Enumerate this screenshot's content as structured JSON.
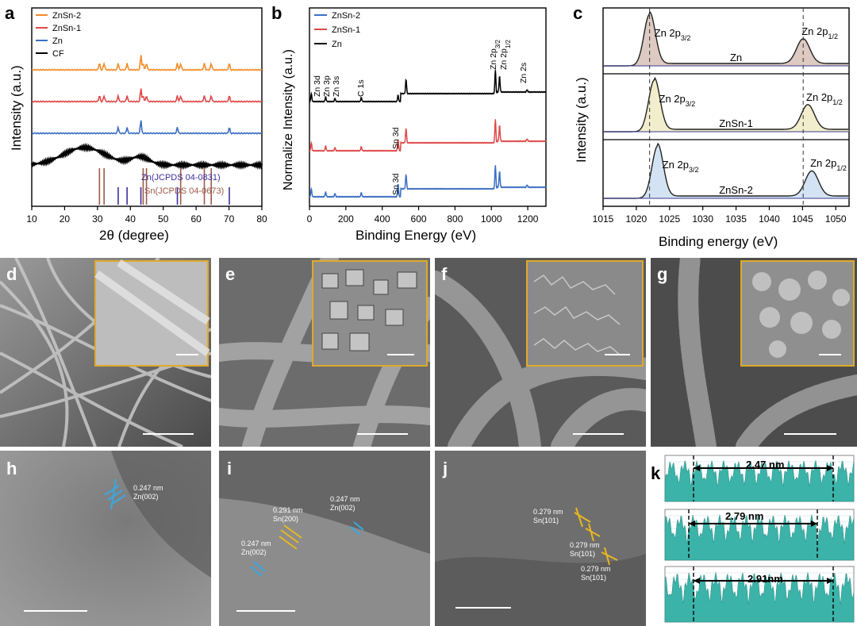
{
  "panel_letters": {
    "a": "a",
    "b": "b",
    "c": "c",
    "d": "d",
    "e": "e",
    "f": "f",
    "g": "g",
    "h": "h",
    "i": "i",
    "j": "j",
    "k": "k"
  },
  "colors": {
    "znsn2": "#f28c28",
    "znsn1": "#e04848",
    "zn": "#3a6fc4",
    "cf": "#000000",
    "ref_zn": "#3b2f9e",
    "ref_sn": "#9b5a4a",
    "inset_border": "#e0a92a",
    "lattice_blue": "#3aa8e0",
    "lattice_yellow": "#e8b820",
    "profile": "#3bb3a8"
  },
  "chart_data": [
    {
      "type": "line",
      "panel": "a",
      "xlabel": "2θ (degree)",
      "ylabel": "Intensity (a.u.)",
      "xlim": [
        10,
        80
      ],
      "xticks": [
        10,
        20,
        30,
        40,
        50,
        60,
        70,
        80
      ],
      "legend": [
        "ZnSn-2",
        "ZnSn-1",
        "Zn",
        "CF"
      ],
      "legend_position": "top-left",
      "ref_labels": [
        "Zn(JCPDS 04-0831)",
        "Sn(JCPDS 04-0673)"
      ],
      "ref_zn": [
        36.3,
        39.0,
        43.2,
        54.3,
        70.1
      ],
      "ref_sn": [
        30.6,
        32.0,
        43.9,
        44.9,
        55.3,
        62.5,
        64.6
      ]
    },
    {
      "type": "line",
      "panel": "b",
      "xlabel": "Binding Energy (eV)",
      "ylabel": "Normalize Intensity (a.u.)",
      "xlim": [
        0,
        1300
      ],
      "xticks": [
        0,
        200,
        400,
        600,
        800,
        1000,
        1200
      ],
      "legend": [
        "ZnSn-2",
        "ZnSn-1",
        "Zn"
      ],
      "legend_position": "top-left",
      "peak_labels": [
        "Zn 3d",
        "Zn 3p",
        "Zn 3s",
        "C 1s",
        "O 1s",
        "Zn 2p3/2",
        "Zn 2p1/2",
        "Zn 2s",
        "Sn 3d",
        "Sn 3d"
      ]
    },
    {
      "type": "line",
      "panel": "c",
      "xlabel": "Binding energy (eV)",
      "ylabel": "Intensity (a.u.)",
      "xlim": [
        1015,
        1052
      ],
      "xticks": [
        1015,
        1020,
        1025,
        1030,
        1035,
        1040,
        1045,
        1050
      ],
      "subplots": [
        {
          "name": "Zn",
          "peaks": [
            1022.0,
            1045.1
          ]
        },
        {
          "name": "ZnSn-1",
          "peaks": [
            1022.7,
            1045.8
          ]
        },
        {
          "name": "ZnSn-2",
          "peaks": [
            1023.2,
            1046.4
          ]
        }
      ],
      "peak_label_main": "Zn 2p",
      "sub_32": "3/2",
      "sub_12": "1/2"
    }
  ],
  "annotations": {
    "h": [
      {
        "d": "0.247 nm",
        "plane": "Zn(002)"
      }
    ],
    "i": [
      {
        "d": "0.291 nm",
        "plane": "Sn(200)"
      },
      {
        "d": "0.247 nm",
        "plane": "Zn(002)"
      },
      {
        "d": "0.247 nm",
        "plane": "Zn(002)"
      }
    ],
    "j": [
      {
        "d": "0.279 nm",
        "plane": "Sn(101)"
      },
      {
        "d": "0.279 nm",
        "plane": "Sn(101)"
      },
      {
        "d": "0.279 nm",
        "plane": "Sn(101)"
      }
    ]
  },
  "k_profiles": [
    "2.47 nm",
    "2.79 nm",
    "2.91nm"
  ]
}
